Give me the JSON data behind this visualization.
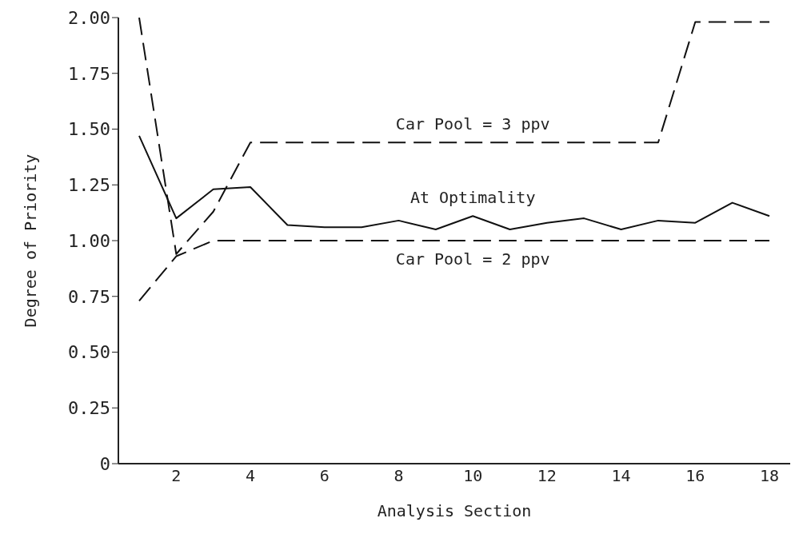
{
  "chart_data": {
    "type": "line",
    "xlabel": "Analysis Section",
    "ylabel": "Degree of Priority",
    "categories": [
      null,
      "2",
      null,
      "4",
      null,
      "6",
      null,
      "8",
      null,
      "10",
      null,
      "12",
      null,
      "14",
      null,
      "16",
      null,
      "18"
    ],
    "series": [
      {
        "name": "Car Pool = 3 ppv",
        "color": "#111111",
        "line_style": "dashed",
        "values": [
          2.0,
          0.94,
          1.13,
          1.44,
          1.44,
          1.44,
          1.44,
          1.44,
          1.44,
          1.44,
          1.44,
          1.44,
          1.44,
          1.44,
          1.44,
          1.98,
          1.98,
          1.98
        ]
      },
      {
        "name": "At Optimality",
        "color": "#111111",
        "line_style": "solid",
        "values": [
          1.47,
          1.1,
          1.23,
          1.24,
          1.07,
          1.06,
          1.06,
          1.09,
          1.05,
          1.11,
          1.05,
          1.08,
          1.1,
          1.05,
          1.09,
          1.08,
          1.17,
          1.11
        ]
      },
      {
        "name": "Car Pool = 2 ppv",
        "color": "#111111",
        "line_style": "dashed",
        "values": [
          0.73,
          0.93,
          1.0,
          1.0,
          1.0,
          1.0,
          1.0,
          1.0,
          1.0,
          1.0,
          1.0,
          1.0,
          1.0,
          1.0,
          1.0,
          1.0,
          1.0,
          1.0
        ]
      }
    ],
    "ylim": [
      0,
      2
    ],
    "yticks": [
      0,
      0.25,
      {
        "value": 0.5,
        "label": "0.50"
      },
      {
        "value": 0.75,
        "label": "0.75"
      },
      {
        "value": 1,
        "label": "1.00"
      },
      {
        "value": 1.25,
        "label": "1.25"
      },
      {
        "value": 1.5,
        "label": "1.50"
      },
      {
        "value": 1.75,
        "label": "1.75"
      },
      {
        "value": 2,
        "label": "2.00"
      }
    ],
    "grid": false,
    "legend": false,
    "marker": "none"
  }
}
